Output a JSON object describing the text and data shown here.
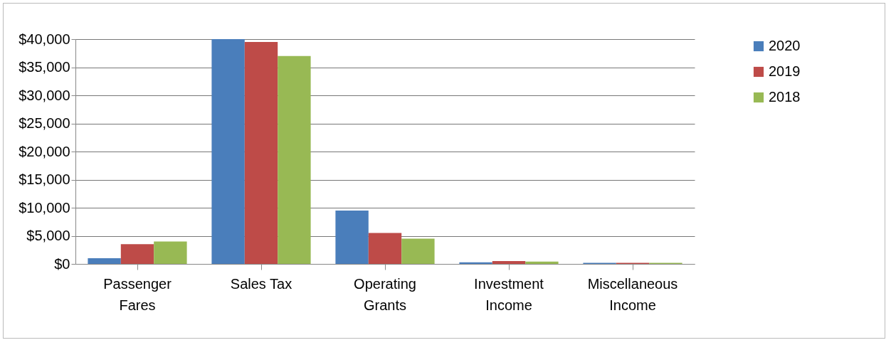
{
  "chart_data": {
    "type": "bar",
    "categories": [
      "Passenger Fares",
      "Sales Tax",
      "Operating Grants",
      "Investment Income",
      "Miscellaneous Income"
    ],
    "series": [
      {
        "name": "2020",
        "color": "#4a7ebb",
        "values": [
          1000,
          40000,
          9500,
          300,
          200
        ]
      },
      {
        "name": "2019",
        "color": "#be4b48",
        "values": [
          3500,
          39500,
          5500,
          500,
          200
        ]
      },
      {
        "name": "2018",
        "color": "#98b954",
        "values": [
          4000,
          37000,
          4500,
          400,
          200
        ]
      }
    ],
    "ylim": [
      0,
      40000
    ],
    "yticks": [
      {
        "value": 0,
        "label": "$0"
      },
      {
        "value": 5000,
        "label": "$5,000"
      },
      {
        "value": 10000,
        "label": "$10,000"
      },
      {
        "value": 15000,
        "label": "$15,000"
      },
      {
        "value": 20000,
        "label": "$20,000"
      },
      {
        "value": 25000,
        "label": "$25,000"
      },
      {
        "value": 30000,
        "label": "$30,000"
      },
      {
        "value": 35000,
        "label": "$35,000"
      },
      {
        "value": 40000,
        "label": "$40,000"
      }
    ],
    "grid": "y",
    "legend": "right"
  }
}
